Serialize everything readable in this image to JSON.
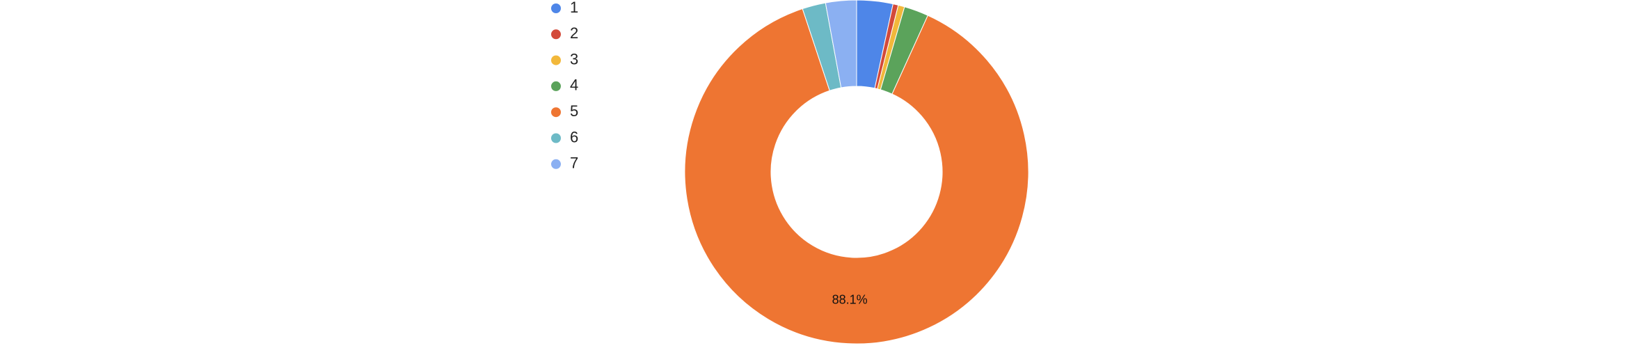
{
  "chart_data": {
    "type": "donut",
    "categories": [
      "1",
      "2",
      "3",
      "4",
      "5",
      "6",
      "7"
    ],
    "values": [
      3.4,
      0.5,
      0.6,
      2.3,
      88.1,
      2.2,
      2.9
    ],
    "value_labels": [
      null,
      null,
      null,
      null,
      "88.1%",
      null,
      null
    ],
    "colors": [
      "#4e86e8",
      "#d34a3a",
      "#f2b83b",
      "#5ba35b",
      "#ee7532",
      "#6dbac6",
      "#8bb0f2"
    ],
    "legend": "top-left"
  }
}
